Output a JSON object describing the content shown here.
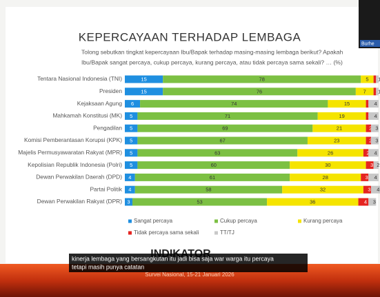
{
  "chart_data": {
    "type": "stacked-bar-horizontal",
    "title": "KEPERCAYAAN TERHADAP LEMBAGA",
    "subtitle": [
      "Tolong sebutkan tingkat kepercayaan Ibu/Bapak terhadap masing-masing lembaga berikut? Apakah",
      "Ibu/Bapak sangat percaya, cukup percaya, kurang percaya, atau tidak percaya sama sekali? … (%)"
    ],
    "categories": [
      "Tentara Nasional Indonesia (TNI)",
      "Presiden",
      "Kejaksaan Agung",
      "Mahkamah Konstitusi (MK)",
      "Pengadilan",
      "Komisi Pemberantasan Korupsi (KPK)",
      "Majelis Permusyawaratan Rakyat (MPR)",
      "Kepolisian Republik Indonesia (Polri)",
      "Dewan Perwakilan Daerah (DPD)",
      "Partai Politik",
      "Dewan Perwakilan Rakyat (DPR)"
    ],
    "series": [
      {
        "name": "Sangat percaya",
        "color": "#1f8fe0",
        "values": [
          15,
          15,
          6,
          5,
          5,
          5,
          5,
          5,
          4,
          4,
          3
        ]
      },
      {
        "name": "Cukup percaya",
        "color": "#7cc043",
        "values": [
          78,
          76,
          74,
          71,
          69,
          67,
          63,
          60,
          61,
          58,
          53
        ]
      },
      {
        "name": "Kurang percaya",
        "color": "#f5e400",
        "values": [
          5,
          7,
          15,
          19,
          21,
          23,
          26,
          30,
          28,
          32,
          36
        ]
      },
      {
        "name": "Tidak percaya sama sekali",
        "color": "#e52420",
        "values": [
          1,
          1,
          1,
          1,
          2,
          2,
          2,
          3,
          3,
          3,
          4
        ]
      },
      {
        "name": "TT/TJ",
        "color": "#c8c8c8",
        "values": [
          1,
          1,
          4,
          4,
          3,
          3,
          4,
          2,
          4,
          4,
          3
        ]
      }
    ],
    "xlim": [
      0,
      100
    ],
    "logo": "INDIKATOR",
    "footer": "Survei Nasional, 15-21 Januari 2026",
    "caption": [
      "kinerja lembaga yang bersangkutan itu jadi bisa saja war warga itu percaya",
      "tetapi masih punya catatan"
    ],
    "speaker": "Burhe"
  }
}
